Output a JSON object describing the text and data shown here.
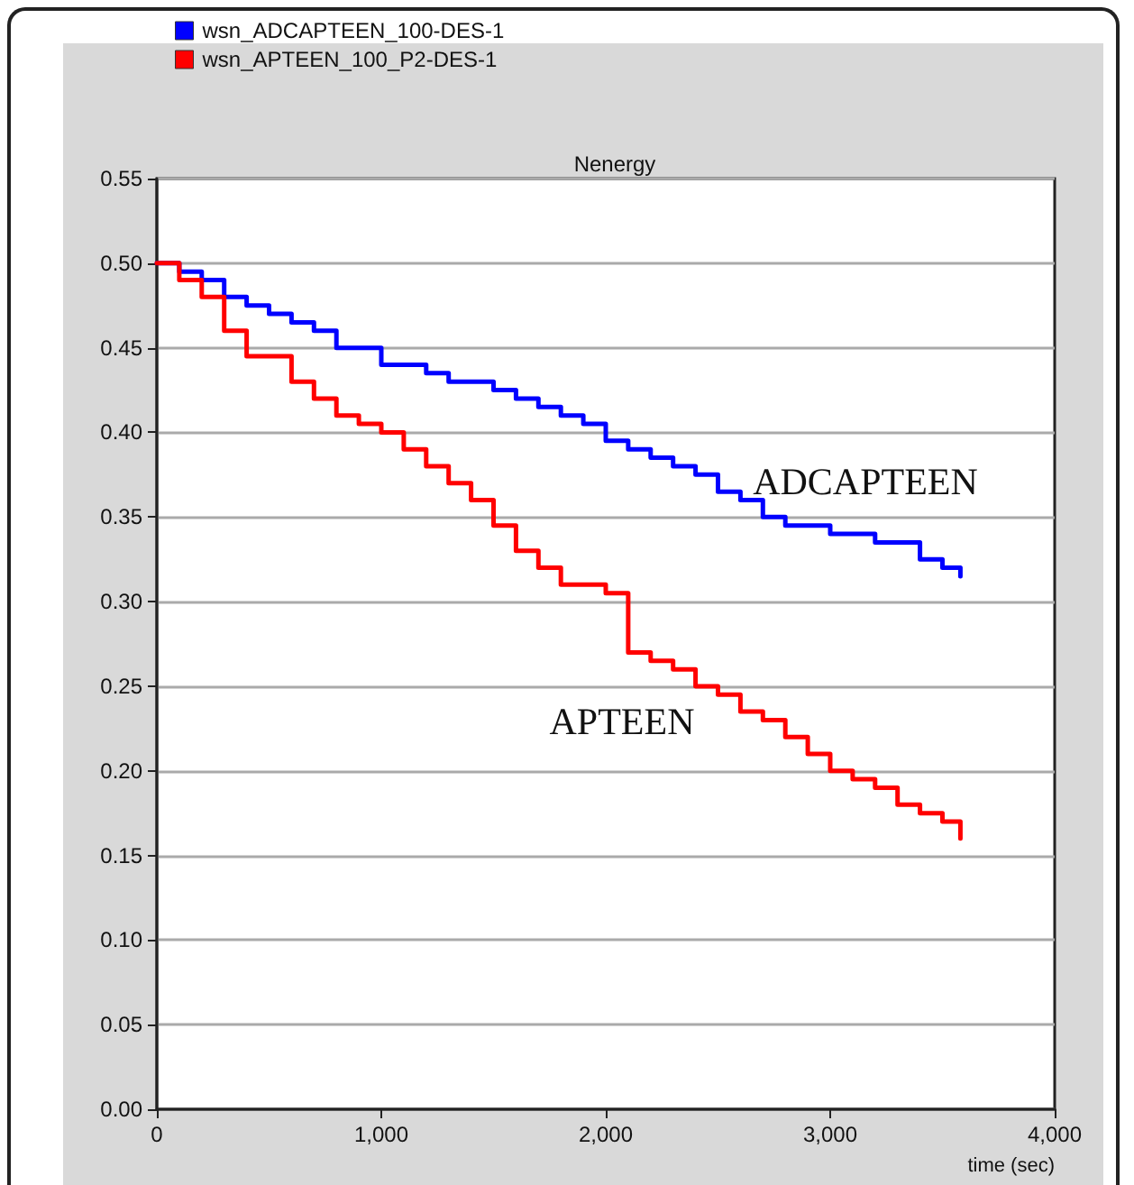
{
  "chart_data": {
    "type": "step",
    "title": "Nenergy",
    "xlabel": "time (sec)",
    "x": [
      0,
      100,
      200,
      300,
      400,
      500,
      600,
      700,
      800,
      900,
      1000,
      1100,
      1200,
      1300,
      1400,
      1500,
      1600,
      1700,
      1800,
      1900,
      2000,
      2100,
      2200,
      2300,
      2400,
      2500,
      2600,
      2700,
      2800,
      2900,
      3000,
      3100,
      3200,
      3300,
      3400,
      3500,
      3580
    ],
    "series": [
      {
        "name": "wsn_ADCAPTEEN_100-DES-1",
        "color": "#0000ff",
        "values": [
          0.5,
          0.495,
          0.49,
          0.48,
          0.475,
          0.47,
          0.465,
          0.46,
          0.45,
          0.45,
          0.44,
          0.44,
          0.435,
          0.43,
          0.43,
          0.425,
          0.42,
          0.415,
          0.41,
          0.405,
          0.395,
          0.39,
          0.385,
          0.38,
          0.375,
          0.365,
          0.36,
          0.35,
          0.345,
          0.345,
          0.34,
          0.34,
          0.335,
          0.335,
          0.325,
          0.32,
          0.315
        ]
      },
      {
        "name": "wsn_APTEEN_100_P2-DES-1",
        "color": "#ff0000",
        "values": [
          0.5,
          0.49,
          0.48,
          0.46,
          0.445,
          0.445,
          0.43,
          0.42,
          0.41,
          0.405,
          0.4,
          0.39,
          0.38,
          0.37,
          0.36,
          0.345,
          0.33,
          0.32,
          0.31,
          0.31,
          0.305,
          0.27,
          0.265,
          0.26,
          0.25,
          0.245,
          0.235,
          0.23,
          0.22,
          0.21,
          0.2,
          0.195,
          0.19,
          0.18,
          0.175,
          0.17,
          0.16
        ]
      }
    ],
    "annotations": [
      "ADCAPTEEN",
      "APTEEN"
    ],
    "xlim": [
      0,
      4000
    ],
    "xticks": [
      {
        "value": 0,
        "label": "0"
      },
      {
        "value": 1000,
        "label": "1,000"
      },
      {
        "value": 2000,
        "label": "2,000"
      },
      {
        "value": 3000,
        "label": "3,000"
      },
      {
        "value": 4000,
        "label": "4,000"
      }
    ],
    "ylim": [
      0,
      0.55
    ],
    "yticks": [
      {
        "value": 0,
        "label": "0.00"
      },
      {
        "value": 0.05,
        "label": "0.05"
      },
      {
        "value": 0.1,
        "label": "0.10"
      },
      {
        "value": 0.15,
        "label": "0.15"
      },
      {
        "value": 0.2,
        "label": "0.20"
      },
      {
        "value": 0.25,
        "label": "0.25"
      },
      {
        "value": 0.3,
        "label": "0.30"
      },
      {
        "value": 0.35,
        "label": "0.35"
      },
      {
        "value": 0.4,
        "label": "0.40"
      },
      {
        "value": 0.45,
        "label": "0.45"
      },
      {
        "value": 0.5,
        "label": "0.50"
      },
      {
        "value": 0.55,
        "label": "0.55"
      }
    ],
    "grid": "y",
    "legend": "top left",
    "marker": "none",
    "line_style": "solid"
  }
}
